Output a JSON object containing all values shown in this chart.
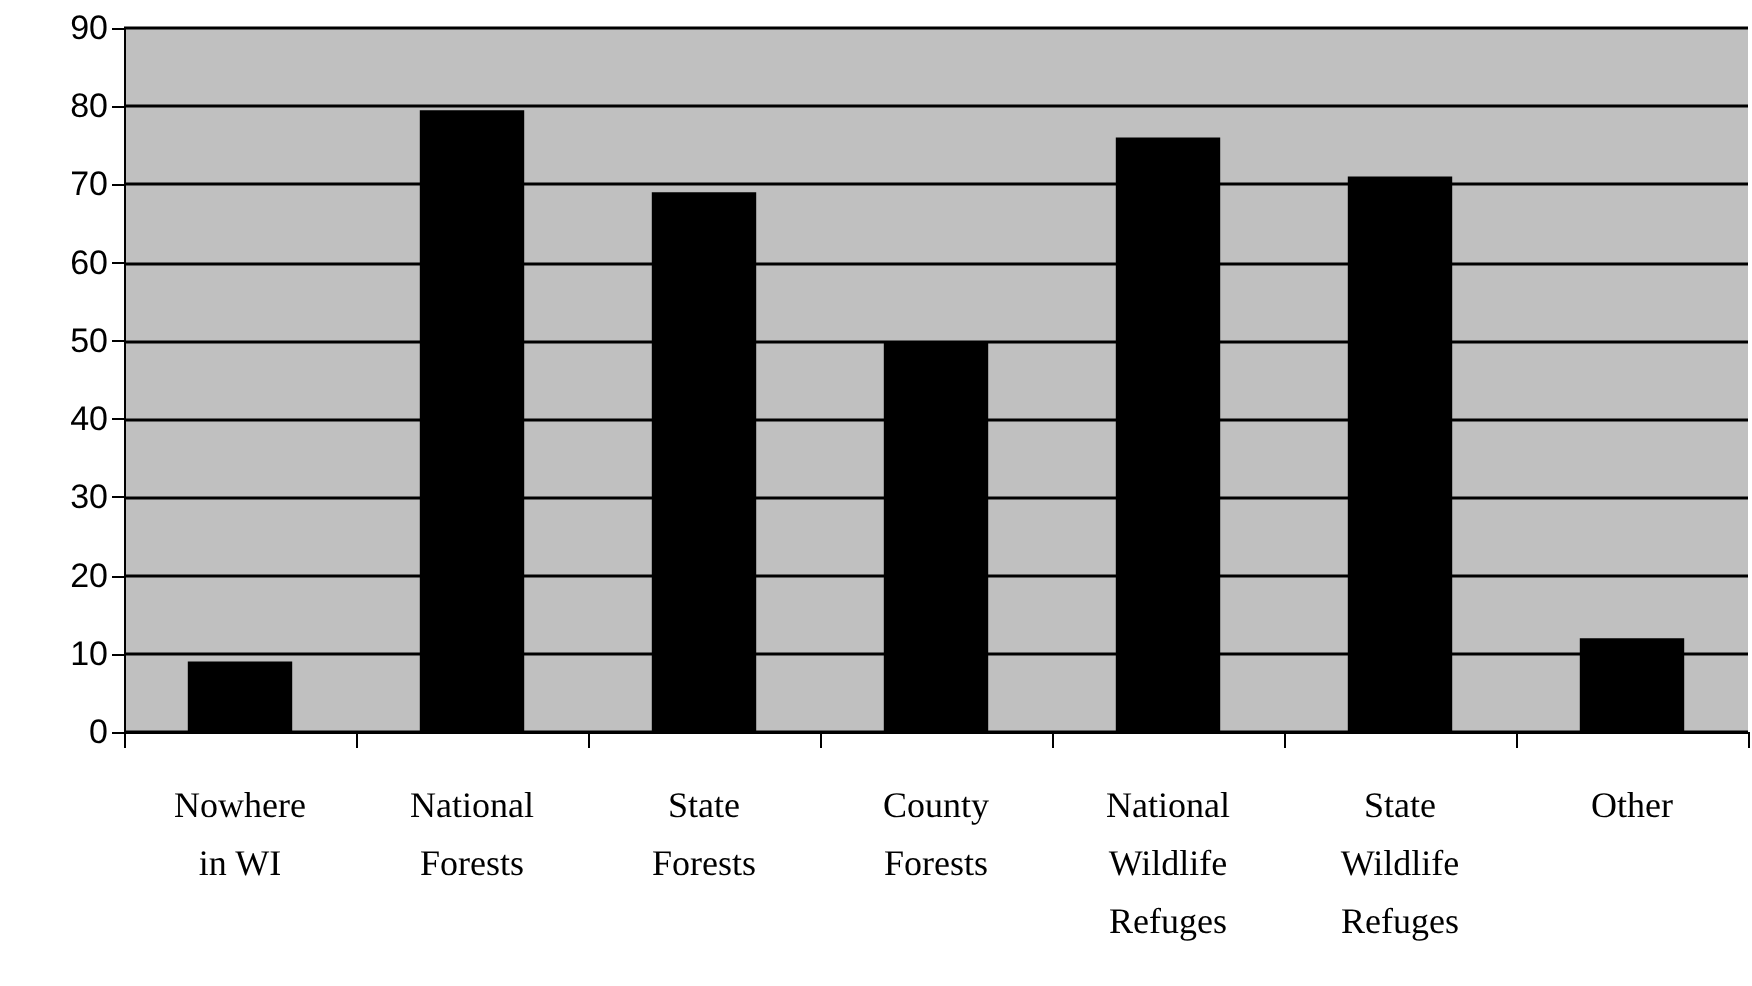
{
  "chart_data": {
    "type": "bar",
    "categories": [
      "Nowhere\nin WI",
      "National\nForests",
      "State\nForests",
      "County\nForests",
      "National\nWildlife\nRefuges",
      "State\nWildlife\nRefuges",
      "Other"
    ],
    "values": [
      9,
      79.5,
      69,
      50,
      76,
      71,
      12
    ],
    "color": "#000000",
    "ylim": [
      0,
      90
    ],
    "yticks": [
      0,
      10,
      20,
      30,
      40,
      50,
      60,
      70,
      80,
      90
    ],
    "grid": "y"
  }
}
